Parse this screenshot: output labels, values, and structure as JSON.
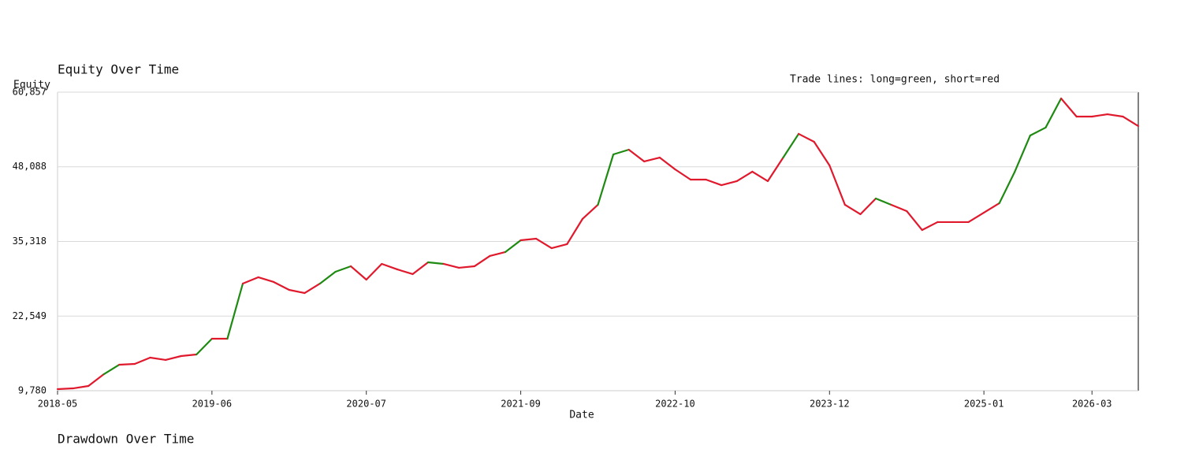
{
  "chart_data": {
    "type": "line",
    "title": "Equity Over Time",
    "subtitle": "Trade lines: long=green, short=red",
    "x_label": "Date",
    "y_label": "Equity",
    "next_title": "Drawdown Over Time",
    "categories": [
      "2018-05",
      null,
      null,
      null,
      null,
      null,
      null,
      null,
      null,
      null,
      "2019-06",
      null,
      null,
      null,
      null,
      null,
      null,
      null,
      null,
      null,
      "2020-07",
      null,
      null,
      null,
      null,
      null,
      null,
      null,
      null,
      null,
      "2021-09",
      null,
      null,
      null,
      null,
      null,
      null,
      null,
      null,
      null,
      "2022-10",
      null,
      null,
      null,
      null,
      null,
      null,
      null,
      null,
      null,
      "2023-12",
      null,
      null,
      null,
      null,
      null,
      null,
      null,
      null,
      null,
      "2025-01",
      null,
      null,
      null,
      null,
      null,
      null,
      "2026-03",
      null,
      null,
      null
    ],
    "series": [
      {
        "name": "Equity",
        "values": [
          10050,
          10180,
          10590,
          12610,
          14230,
          14360,
          15440,
          15040,
          15710,
          15980,
          18670,
          18670,
          28110,
          29190,
          28380,
          27030,
          26490,
          28110,
          30130,
          31070,
          28780,
          31480,
          30540,
          29730,
          31750,
          31480,
          30810,
          31070,
          32830,
          33500,
          35520,
          35790,
          34170,
          34850,
          39160,
          41590,
          50210,
          51020,
          49000,
          49670,
          47650,
          45900,
          45900,
          44950,
          45630,
          47250,
          45630,
          49670,
          53720,
          52370,
          48320,
          41590,
          39970,
          42660,
          41590,
          40510,
          37270,
          38630,
          38630,
          38630,
          40240,
          41860,
          47250,
          53450,
          54800,
          59780,
          56680,
          56680,
          57080,
          56680,
          55060
        ]
      }
    ],
    "segment_sides": [
      "short",
      "short",
      "short",
      "long",
      "short",
      "short",
      "short",
      "short",
      "short",
      "long",
      "short",
      "long",
      "short",
      "short",
      "short",
      "short",
      "short",
      "long",
      "long",
      "short",
      "short",
      "short",
      "short",
      "short",
      "long",
      "short",
      "short",
      "short",
      "short",
      "long",
      "short",
      "short",
      "short",
      "short",
      "short",
      "long",
      "long",
      "short",
      "short",
      "short",
      "short",
      "short",
      "short",
      "short",
      "short",
      "short",
      "short",
      "long",
      "short",
      "short",
      "short",
      "short",
      "short",
      "long",
      "short",
      "short",
      "short",
      "short",
      "short",
      "short",
      "short",
      "long",
      "long",
      "long",
      "long",
      "short",
      "short",
      "short",
      "short",
      "short"
    ],
    "side_colors": {
      "long": "#1f8a12",
      "short": "#e0192d"
    },
    "ylim": [
      9780,
      60857
    ],
    "yticks": [
      {
        "value": 9780,
        "label": "9,780"
      },
      {
        "value": 22549,
        "label": "22,549"
      },
      {
        "value": 35318,
        "label": "35,318"
      },
      {
        "value": 48088,
        "label": "48,088"
      },
      {
        "value": 60857,
        "label": "60,857"
      }
    ],
    "grid": true
  }
}
